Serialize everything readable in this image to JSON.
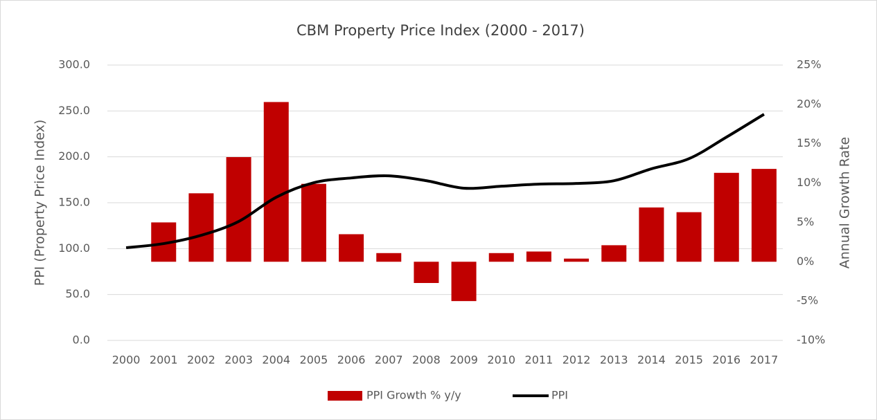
{
  "chart_data": {
    "type": "bar-line",
    "title": "CBM Property Price Index (2000 - 2017)",
    "y_label": "PPI (Property Price Index)",
    "y2_label": "Annual Growth Rate",
    "categories": [
      "2000",
      "2001",
      "2002",
      "2003",
      "2004",
      "2005",
      "2006",
      "2007",
      "2008",
      "2009",
      "2010",
      "2011",
      "2012",
      "2013",
      "2014",
      "2015",
      "2016",
      "2017"
    ],
    "series": [
      {
        "name": "PPI Growth % y/y",
        "type": "bar",
        "axis": "y2",
        "color": "#c00000",
        "values": [
          null,
          5.0,
          8.7,
          13.3,
          20.3,
          9.9,
          3.5,
          1.1,
          -2.7,
          -5.0,
          1.1,
          1.3,
          0.4,
          2.1,
          6.9,
          6.3,
          11.3,
          11.8
        ]
      },
      {
        "name": "PPI",
        "type": "line",
        "color": "#000000",
        "values": [
          101,
          105.5,
          114.5,
          129.6,
          156,
          171.8,
          177,
          179.3,
          174,
          165.8,
          168,
          170.3,
          171,
          174,
          187,
          198,
          221.5,
          246.4
        ]
      }
    ],
    "ylim": [
      0,
      300
    ],
    "yticks": [
      {
        "value": 0,
        "label": "0.0"
      },
      {
        "value": 50,
        "label": "50.0"
      },
      {
        "value": 100,
        "label": "100.0"
      },
      {
        "value": 150,
        "label": "150.0"
      },
      {
        "value": 200,
        "label": "200.0"
      },
      {
        "value": 250,
        "label": "250.0"
      },
      {
        "value": 300,
        "label": "300.0"
      }
    ],
    "y2lim": [
      -10,
      25
    ],
    "y2ticks": [
      {
        "value": -10,
        "label": "-10%"
      },
      {
        "value": -5,
        "label": "-5%"
      },
      {
        "value": 0,
        "label": "0%"
      },
      {
        "value": 5,
        "label": "5%"
      },
      {
        "value": 10,
        "label": "10%"
      },
      {
        "value": 15,
        "label": "15%"
      },
      {
        "value": 20,
        "label": "20%"
      },
      {
        "value": 25,
        "label": "25%"
      }
    ],
    "grid": true,
    "legend": "bottom"
  }
}
